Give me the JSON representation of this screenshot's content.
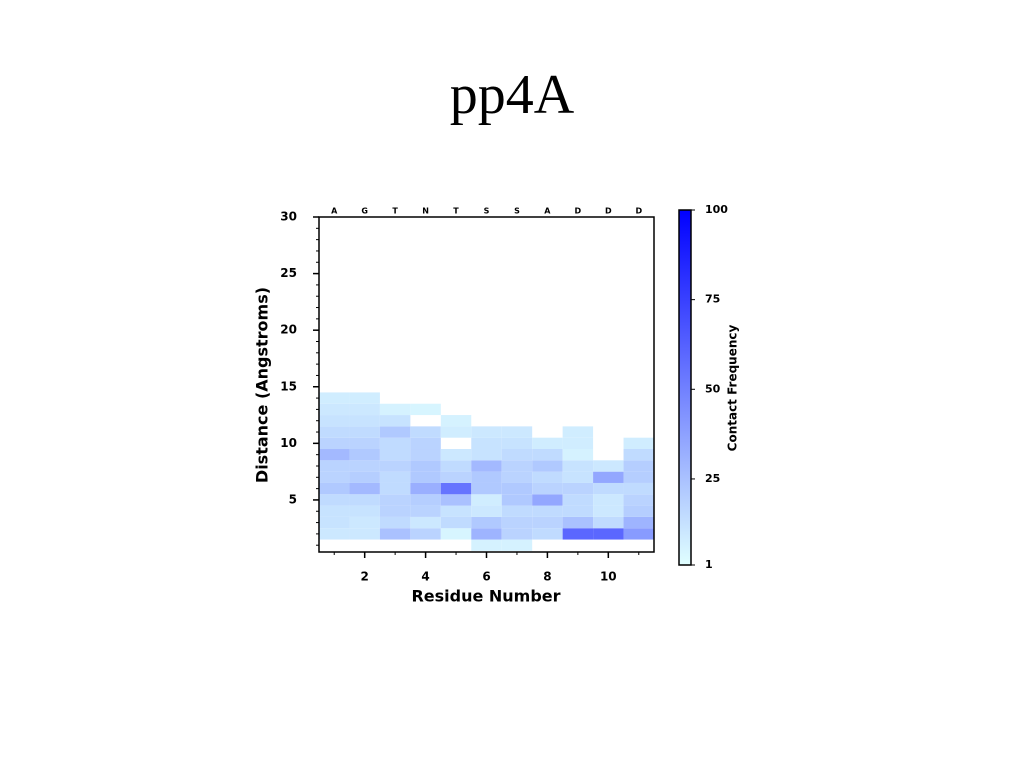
{
  "chart_data": {
    "type": "heatmap",
    "title": "pp4A",
    "xlabel": "Residue Number",
    "ylabel": "Distance (Angstroms)",
    "residues": [
      "A",
      "G",
      "T",
      "N",
      "T",
      "S",
      "S",
      "A",
      "D",
      "D",
      "D"
    ],
    "x": [
      1,
      2,
      3,
      4,
      5,
      6,
      7,
      8,
      9,
      10,
      11
    ],
    "y": [
      1,
      2,
      3,
      4,
      5,
      6,
      7,
      8,
      9,
      10,
      11,
      12,
      13,
      14
    ],
    "values": [
      [
        null,
        10,
        12,
        12,
        15,
        22,
        18,
        18,
        28,
        18,
        15,
        12,
        10,
        8
      ],
      [
        null,
        10,
        10,
        12,
        15,
        28,
        20,
        18,
        22,
        18,
        15,
        12,
        10,
        8
      ],
      [
        null,
        25,
        15,
        18,
        18,
        15,
        15,
        18,
        15,
        15,
        22,
        12,
        6,
        null
      ],
      [
        null,
        18,
        10,
        18,
        20,
        32,
        22,
        22,
        18,
        18,
        15,
        null,
        5,
        null
      ],
      [
        null,
        5,
        15,
        12,
        25,
        55,
        18,
        15,
        10,
        null,
        8,
        6,
        null,
        null
      ],
      [
        6,
        30,
        22,
        10,
        8,
        22,
        22,
        28,
        12,
        12,
        10,
        null,
        null,
        null
      ],
      [
        6,
        18,
        18,
        15,
        22,
        22,
        18,
        18,
        15,
        12,
        10,
        null,
        null,
        null
      ],
      [
        null,
        15,
        18,
        15,
        35,
        18,
        15,
        22,
        15,
        8,
        null,
        null,
        null,
        null
      ],
      [
        null,
        60,
        25,
        15,
        15,
        18,
        12,
        12,
        6,
        8,
        8,
        null,
        null,
        null
      ],
      [
        null,
        60,
        15,
        10,
        10,
        15,
        35,
        10,
        null,
        null,
        null,
        null,
        null,
        null
      ],
      [
        null,
        40,
        30,
        20,
        18,
        15,
        20,
        20,
        15,
        8,
        null,
        null,
        null,
        null
      ]
    ],
    "xlim": [
      0.5,
      11.5
    ],
    "xticks": [
      2,
      4,
      6,
      8,
      10
    ],
    "xminorticks": [
      1,
      2,
      3,
      4,
      5,
      6,
      7,
      8,
      9,
      10,
      11
    ],
    "ylim": [
      0.4,
      30
    ],
    "yticks": [
      5,
      10,
      15,
      20,
      25,
      30
    ],
    "yminorticks": [
      1,
      2,
      3,
      4,
      5,
      6,
      7,
      8,
      9,
      10,
      11,
      12,
      13,
      14,
      15,
      16,
      17,
      18,
      19,
      20,
      21,
      22,
      23,
      24,
      25,
      26,
      27,
      28,
      29,
      30
    ],
    "colorbar": {
      "label": "Contact Frequency",
      "lim": [
        1,
        100
      ],
      "ticks": [
        1,
        25,
        50,
        75,
        100
      ],
      "colors": [
        "#e0ffff",
        "#0000ff"
      ]
    }
  }
}
